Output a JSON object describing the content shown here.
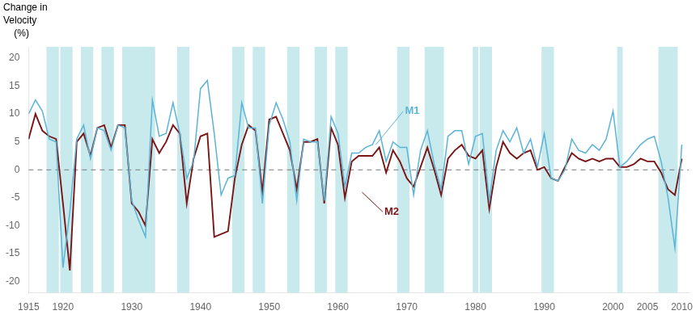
{
  "chart_data": {
    "type": "line",
    "y_label": "Change in\nVelocity\n    (%)",
    "xlim": [
      1915,
      2011
    ],
    "xticks": [
      1915,
      1920,
      1930,
      1940,
      1950,
      1960,
      1970,
      1980,
      1990,
      2000,
      2005,
      2010
    ],
    "ylim": [
      -22,
      22
    ],
    "yticks": [
      -20,
      -15,
      -10,
      -5,
      0,
      5,
      10,
      15,
      20
    ],
    "grid": false,
    "legend": false,
    "hline": 0,
    "recession_bands": {
      "color": "#c8eaed",
      "ranges": [
        [
          1918,
          1919
        ],
        [
          1920,
          1921
        ],
        [
          1923,
          1924
        ],
        [
          1926,
          1927
        ],
        [
          1929,
          1933
        ],
        [
          1937,
          1938
        ],
        [
          1945,
          1946
        ],
        [
          1948,
          1949
        ],
        [
          1953,
          1954
        ],
        [
          1957,
          1958
        ],
        [
          1960,
          1961
        ],
        [
          1969,
          1970
        ],
        [
          1973,
          1975
        ],
        [
          1980,
          1980
        ],
        [
          1981,
          1982
        ],
        [
          1990,
          1991
        ],
        [
          2001,
          2001
        ],
        [
          2007,
          2009
        ]
      ]
    },
    "x": [
      1915,
      1916,
      1917,
      1918,
      1919,
      1920,
      1921,
      1922,
      1923,
      1924,
      1925,
      1926,
      1927,
      1928,
      1929,
      1930,
      1931,
      1932,
      1933,
      1934,
      1935,
      1936,
      1937,
      1938,
      1939,
      1940,
      1941,
      1942,
      1943,
      1944,
      1945,
      1946,
      1947,
      1948,
      1949,
      1950,
      1951,
      1952,
      1953,
      1954,
      1955,
      1956,
      1957,
      1958,
      1959,
      1960,
      1961,
      1962,
      1963,
      1964,
      1965,
      1966,
      1967,
      1968,
      1969,
      1970,
      1971,
      1972,
      1973,
      1974,
      1975,
      1976,
      1977,
      1978,
      1979,
      1980,
      1981,
      1982,
      1983,
      1984,
      1985,
      1986,
      1987,
      1988,
      1989,
      1990,
      1991,
      1992,
      1993,
      1994,
      1995,
      1996,
      1997,
      1998,
      1999,
      2000,
      2001,
      2002,
      2003,
      2004,
      2005,
      2006,
      2007,
      2008,
      2009,
      2010
    ],
    "series": [
      {
        "name": "M1",
        "color": "#5ab4d6",
        "values": [
          10.0,
          12.5,
          10.5,
          5.5,
          5.0,
          -17.5,
          -7.5,
          5.5,
          8.0,
          2.0,
          7.5,
          7.0,
          3.5,
          8.0,
          7.5,
          -5.5,
          -9.0,
          -12.0,
          12.5,
          6.0,
          6.5,
          12.0,
          6.5,
          -1.5,
          1.5,
          14.5,
          16.0,
          6.5,
          -4.5,
          -1.5,
          -1.0,
          12.0,
          7.5,
          7.5,
          -6.0,
          8.0,
          12.0,
          9.0,
          5.0,
          -5.5,
          5.5,
          5.0,
          5.0,
          -5.5,
          9.5,
          6.5,
          -3.0,
          3.0,
          3.0,
          4.0,
          4.5,
          7.0,
          1.5,
          5.0,
          4.0,
          4.0,
          -4.5,
          3.5,
          7.0,
          1.0,
          -3.5,
          6.0,
          7.0,
          7.0,
          1.0,
          6.0,
          6.5,
          -5.5,
          3.5,
          7.0,
          5.0,
          7.5,
          3.0,
          5.5,
          0.5,
          6.5,
          -1.5,
          -2.0,
          0.0,
          5.5,
          3.5,
          3.0,
          4.5,
          3.5,
          5.5,
          10.5,
          0.5,
          1.5,
          3.0,
          4.5,
          5.5,
          6.0,
          1.5,
          -5.0,
          -14.0,
          4.5
        ]
      },
      {
        "name": "M2",
        "color": "#7a1515",
        "values": [
          5.5,
          10.0,
          7.0,
          6.0,
          5.5,
          -6.0,
          -18.0,
          5.0,
          6.5,
          2.5,
          7.5,
          8.0,
          4.0,
          8.0,
          8.0,
          -6.0,
          -7.5,
          -10.0,
          5.5,
          3.0,
          5.0,
          8.0,
          6.5,
          -6.0,
          2.0,
          6.0,
          6.5,
          -12.0,
          -11.5,
          -11.0,
          -1.5,
          4.5,
          8.0,
          7.0,
          -4.0,
          9.0,
          9.5,
          6.5,
          3.5,
          -3.5,
          5.0,
          5.0,
          5.5,
          -6.0,
          7.5,
          4.5,
          -5.0,
          1.5,
          2.5,
          2.5,
          2.5,
          4.0,
          -0.5,
          3.5,
          1.5,
          -1.5,
          -3.0,
          0.5,
          4.0,
          0.0,
          -4.5,
          2.0,
          3.5,
          4.5,
          2.5,
          2.0,
          3.5,
          -7.0,
          0.5,
          5.0,
          3.0,
          2.0,
          3.0,
          3.5,
          0.0,
          0.5,
          -1.5,
          -2.0,
          0.5,
          3.0,
          2.0,
          1.5,
          2.0,
          1.5,
          2.0,
          2.0,
          0.5,
          0.5,
          1.0,
          2.0,
          1.5,
          1.5,
          -0.5,
          -3.5,
          -4.5,
          2.0
        ]
      }
    ],
    "annotations": [
      {
        "text": "M1",
        "x": 1969.5,
        "y": 10.5,
        "point_x": 1965.5,
        "point_y": 4.5,
        "color": "#5ab4d6"
      },
      {
        "text": "M2",
        "x": 1966.5,
        "y": -7.5,
        "point_x": 1963.5,
        "point_y": -4.0,
        "color": "#7a1515"
      }
    ]
  }
}
